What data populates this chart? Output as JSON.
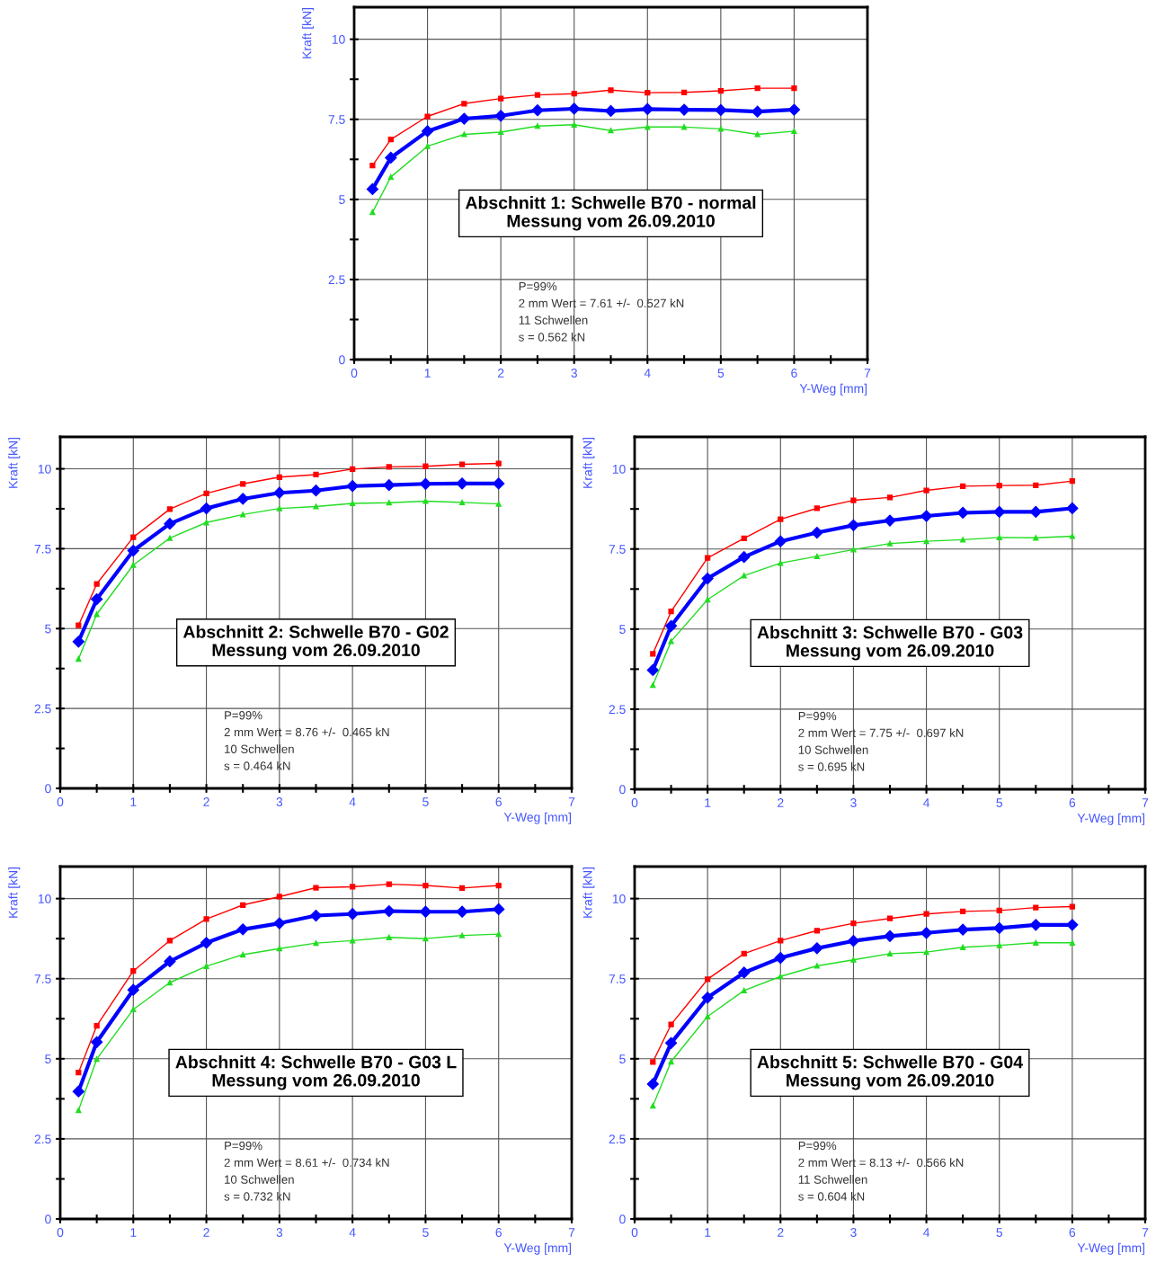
{
  "chart_data": [
    {
      "type": "line",
      "title": "Abschnitt 1: Schwelle B70 - normal\nMessung vom 26.09.2010",
      "xlabel": "Y-Weg [mm]",
      "ylabel": "Kraft [kN]",
      "x": [
        0.25,
        0.5,
        1,
        1.5,
        2,
        2.5,
        3,
        3.5,
        4,
        4.5,
        5,
        5.5,
        6
      ],
      "xlim": [
        0,
        7
      ],
      "ylim": [
        0,
        11
      ],
      "xticks": [
        0,
        {
          "value": 0.5,
          "label": null
        },
        1,
        {
          "value": 1.5,
          "label": null
        },
        2,
        {
          "value": 2.5,
          "label": null
        },
        3,
        {
          "value": 3.5,
          "label": null
        },
        4,
        {
          "value": 4.5,
          "label": null
        },
        5,
        {
          "value": 5.5,
          "label": null
        },
        6,
        {
          "value": 6.5,
          "label": null
        },
        7
      ],
      "yticks": [
        0,
        {
          "value": 1.25,
          "label": null
        },
        2.5,
        {
          "value": 3.75,
          "label": null
        },
        5,
        {
          "value": 6.25,
          "label": null
        },
        7.5,
        {
          "value": 8.75,
          "label": null
        },
        10
      ],
      "grid": true,
      "series": [
        {
          "color": "#ff0000",
          "marker": "square",
          "values": [
            6.06,
            6.87,
            7.59,
            7.99,
            8.15,
            8.26,
            8.3,
            8.41,
            8.33,
            8.34,
            8.39,
            8.47,
            8.47
          ]
        },
        {
          "color": "#0000ff",
          "marker": "diamond",
          "values": [
            5.32,
            6.3,
            7.13,
            7.52,
            7.61,
            7.78,
            7.83,
            7.76,
            7.82,
            7.8,
            7.79,
            7.74,
            7.8
          ]
        },
        {
          "color": "#22dd22",
          "marker": "triangle",
          "values": [
            4.6,
            5.7,
            6.66,
            7.03,
            7.1,
            7.29,
            7.33,
            7.15,
            7.26,
            7.26,
            7.2,
            7.03,
            7.13
          ]
        }
      ],
      "annotations": [
        "P=99%",
        "2 mm Wert = 7.61 +/-  0.527 kN",
        "11 Schwellen",
        "s = 0.562 kN"
      ]
    },
    {
      "type": "line",
      "title": "Abschnitt 2: Schwelle B70 - G02\nMessung vom 26.09.2010",
      "xlabel": "Y-Weg [mm]",
      "ylabel": "Kraft [kN]",
      "x": [
        0.25,
        0.5,
        1,
        1.5,
        2,
        2.5,
        3,
        3.5,
        4,
        4.5,
        5,
        5.5,
        6
      ],
      "xlim": [
        0,
        7
      ],
      "ylim": [
        0,
        11
      ],
      "xticks": [
        0,
        {
          "value": 0.5,
          "label": null
        },
        1,
        {
          "value": 1.5,
          "label": null
        },
        2,
        {
          "value": 2.5,
          "label": null
        },
        3,
        {
          "value": 3.5,
          "label": null
        },
        4,
        {
          "value": 4.5,
          "label": null
        },
        5,
        {
          "value": 5.5,
          "label": null
        },
        6,
        {
          "value": 6.5,
          "label": null
        },
        7
      ],
      "yticks": [
        0,
        {
          "value": 1.25,
          "label": null
        },
        2.5,
        {
          "value": 3.75,
          "label": null
        },
        5,
        {
          "value": 6.25,
          "label": null
        },
        7.5,
        {
          "value": 8.75,
          "label": null
        },
        10
      ],
      "grid": true,
      "series": [
        {
          "color": "#ff0000",
          "marker": "square",
          "values": [
            5.1,
            6.4,
            7.86,
            8.74,
            9.23,
            9.53,
            9.74,
            9.82,
            9.99,
            10.06,
            10.08,
            10.14,
            10.17
          ]
        },
        {
          "color": "#0000ff",
          "marker": "diamond",
          "values": [
            4.59,
            5.92,
            7.44,
            8.28,
            8.76,
            9.06,
            9.25,
            9.32,
            9.46,
            9.49,
            9.53,
            9.54,
            9.54
          ]
        },
        {
          "color": "#22dd22",
          "marker": "triangle",
          "values": [
            4.05,
            5.45,
            6.99,
            7.83,
            8.32,
            8.57,
            8.76,
            8.82,
            8.92,
            8.94,
            8.99,
            8.95,
            8.9
          ]
        }
      ],
      "annotations": [
        "P=99%",
        "2 mm Wert = 8.76 +/-  0.465 kN",
        "10 Schwellen",
        "s = 0.464 kN"
      ]
    },
    {
      "type": "line",
      "title": "Abschnitt 3: Schwelle B70 - G03\nMessung vom 26.09.2010",
      "xlabel": "Y-Weg [mm]",
      "ylabel": "Kraft [kN]",
      "x": [
        0.25,
        0.5,
        1,
        1.5,
        2,
        2.5,
        3,
        3.5,
        4,
        4.5,
        5,
        5.5,
        6
      ],
      "xlim": [
        0,
        7
      ],
      "ylim": [
        0,
        11
      ],
      "xticks": [
        0,
        {
          "value": 0.5,
          "label": null
        },
        1,
        {
          "value": 1.5,
          "label": null
        },
        2,
        {
          "value": 2.5,
          "label": null
        },
        3,
        {
          "value": 3.5,
          "label": null
        },
        4,
        {
          "value": 4.5,
          "label": null
        },
        5,
        {
          "value": 5.5,
          "label": null
        },
        6,
        {
          "value": 6.5,
          "label": null
        },
        7
      ],
      "yticks": [
        0,
        {
          "value": 1.25,
          "label": null
        },
        2.5,
        {
          "value": 3.75,
          "label": null
        },
        5,
        {
          "value": 6.25,
          "label": null
        },
        7.5,
        {
          "value": 8.75,
          "label": null
        },
        10
      ],
      "grid": true,
      "series": [
        {
          "color": "#ff0000",
          "marker": "square",
          "values": [
            4.23,
            5.55,
            7.22,
            7.83,
            8.43,
            8.77,
            9.02,
            9.11,
            9.33,
            9.46,
            9.48,
            9.49,
            9.62
          ]
        },
        {
          "color": "#0000ff",
          "marker": "diamond",
          "values": [
            3.72,
            5.1,
            6.58,
            7.25,
            7.74,
            8.01,
            8.24,
            8.39,
            8.53,
            8.63,
            8.66,
            8.66,
            8.77
          ]
        },
        {
          "color": "#22dd22",
          "marker": "triangle",
          "values": [
            3.25,
            4.62,
            5.92,
            6.67,
            7.06,
            7.27,
            7.48,
            7.67,
            7.74,
            7.79,
            7.86,
            7.85,
            7.9
          ]
        }
      ],
      "annotations": [
        "P=99%",
        "2 mm Wert = 7.75 +/-  0.697 kN",
        "10 Schwellen",
        "s = 0.695 kN"
      ]
    },
    {
      "type": "line",
      "title": "Abschnitt 4: Schwelle B70 - G03 L\nMessung vom 26.09.2010",
      "xlabel": "Y-Weg [mm]",
      "ylabel": "Kraft [kN]",
      "x": [
        0.25,
        0.5,
        1,
        1.5,
        2,
        2.5,
        3,
        3.5,
        4,
        4.5,
        5,
        5.5,
        6
      ],
      "xlim": [
        0,
        7
      ],
      "ylim": [
        0,
        11
      ],
      "xticks": [
        0,
        {
          "value": 0.5,
          "label": null
        },
        1,
        {
          "value": 1.5,
          "label": null
        },
        2,
        {
          "value": 2.5,
          "label": null
        },
        3,
        {
          "value": 3.5,
          "label": null
        },
        4,
        {
          "value": 4.5,
          "label": null
        },
        5,
        {
          "value": 5.5,
          "label": null
        },
        6,
        {
          "value": 6.5,
          "label": null
        },
        7
      ],
      "yticks": [
        0,
        {
          "value": 1.25,
          "label": null
        },
        2.5,
        {
          "value": 3.75,
          "label": null
        },
        5,
        {
          "value": 6.25,
          "label": null
        },
        7.5,
        {
          "value": 8.75,
          "label": null
        },
        10
      ],
      "grid": true,
      "series": [
        {
          "color": "#ff0000",
          "marker": "square",
          "values": [
            4.57,
            6.03,
            7.74,
            8.69,
            9.36,
            9.8,
            10.06,
            10.34,
            10.37,
            10.45,
            10.41,
            10.33,
            10.41
          ]
        },
        {
          "color": "#0000ff",
          "marker": "diamond",
          "values": [
            3.98,
            5.52,
            7.15,
            8.04,
            8.62,
            9.04,
            9.23,
            9.47,
            9.52,
            9.61,
            9.59,
            9.59,
            9.67
          ]
        },
        {
          "color": "#22dd22",
          "marker": "triangle",
          "values": [
            3.39,
            4.99,
            6.54,
            7.38,
            7.89,
            8.25,
            8.44,
            8.61,
            8.69,
            8.79,
            8.75,
            8.85,
            8.89
          ]
        }
      ],
      "annotations": [
        "P=99%",
        "2 mm Wert = 8.61 +/-  0.734 kN",
        "10 Schwellen",
        "s = 0.732 kN"
      ]
    },
    {
      "type": "line",
      "title": "Abschnitt 5: Schwelle B70 - G04\nMessung vom 26.09.2010",
      "xlabel": "Y-Weg [mm]",
      "ylabel": "Kraft [kN]",
      "x": [
        0.25,
        0.5,
        1,
        1.5,
        2,
        2.5,
        3,
        3.5,
        4,
        4.5,
        5,
        5.5,
        6
      ],
      "xlim": [
        0,
        7
      ],
      "ylim": [
        0,
        11
      ],
      "xticks": [
        0,
        {
          "value": 0.5,
          "label": null
        },
        1,
        {
          "value": 1.5,
          "label": null
        },
        2,
        {
          "value": 2.5,
          "label": null
        },
        3,
        {
          "value": 3.5,
          "label": null
        },
        4,
        {
          "value": 4.5,
          "label": null
        },
        5,
        {
          "value": 5.5,
          "label": null
        },
        6,
        {
          "value": 6.5,
          "label": null
        },
        7
      ],
      "yticks": [
        0,
        {
          "value": 1.25,
          "label": null
        },
        2.5,
        {
          "value": 3.75,
          "label": null
        },
        5,
        {
          "value": 6.25,
          "label": null
        },
        7.5,
        {
          "value": 8.75,
          "label": null
        },
        10
      ],
      "grid": true,
      "series": [
        {
          "color": "#ff0000",
          "marker": "square",
          "values": [
            4.9,
            6.07,
            7.48,
            8.28,
            8.69,
            9.0,
            9.23,
            9.38,
            9.52,
            9.6,
            9.63,
            9.72,
            9.75
          ]
        },
        {
          "color": "#0000ff",
          "marker": "diamond",
          "values": [
            4.21,
            5.49,
            6.91,
            7.69,
            8.15,
            8.45,
            8.68,
            8.83,
            8.93,
            9.03,
            9.08,
            9.18,
            9.18
          ]
        },
        {
          "color": "#22dd22",
          "marker": "triangle",
          "values": [
            3.53,
            4.91,
            6.32,
            7.13,
            7.57,
            7.9,
            8.09,
            8.28,
            8.33,
            8.48,
            8.54,
            8.62,
            8.62
          ]
        }
      ],
      "annotations": [
        "P=99%",
        "2 mm Wert = 8.13 +/-  0.566 kN",
        "11 Schwellen",
        "s = 0.604 kN"
      ]
    }
  ]
}
